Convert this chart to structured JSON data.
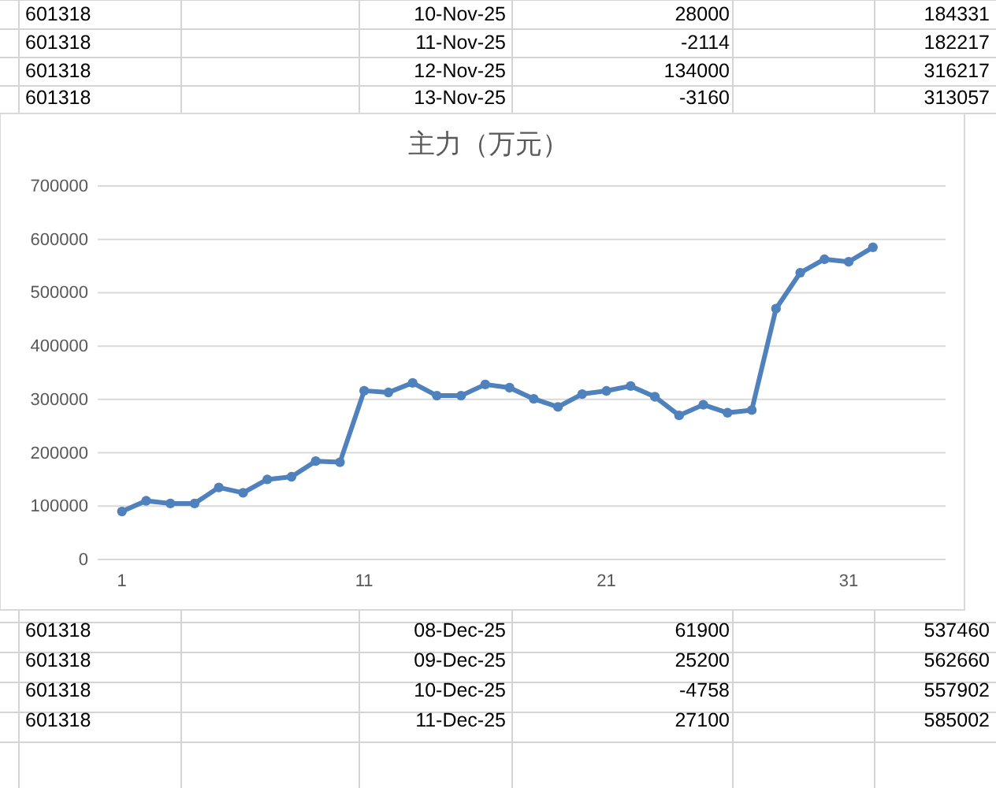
{
  "chart_data": {
    "type": "line",
    "title": "主力（万元）",
    "x": [
      1,
      2,
      3,
      4,
      5,
      6,
      7,
      8,
      9,
      10,
      11,
      12,
      13,
      14,
      15,
      16,
      17,
      18,
      19,
      20,
      21,
      22,
      23,
      24,
      25,
      26,
      27,
      28,
      29,
      30,
      31,
      32
    ],
    "series": [
      {
        "color": "#4f81bd",
        "values": [
          90000,
          110000,
          105000,
          105000,
          135000,
          125000,
          150000,
          155000,
          184331,
          182217,
          316217,
          313057,
          331000,
          307000,
          307000,
          328000,
          322000,
          301000,
          286000,
          310000,
          316000,
          325000,
          305000,
          270000,
          290000,
          275000,
          280000,
          470000,
          537460,
          562660,
          557902,
          585002
        ]
      }
    ],
    "xlim": [
      0,
      35
    ],
    "xticks": [
      1,
      11,
      21,
      31
    ],
    "ylim": [
      0,
      700000
    ],
    "yticks": [
      0,
      100000,
      200000,
      300000,
      400000,
      500000,
      600000,
      700000
    ],
    "grid": "y",
    "marker": "circle",
    "line_style": "solid",
    "annotations": [
      "601318",
      "10-Nov-25",
      "28000",
      "184331",
      "601318",
      "11-Nov-25",
      "-2114",
      "182217",
      "601318",
      "12-Nov-25",
      "134000",
      "316217",
      "601318",
      "13-Nov-25",
      "-3160",
      "313057",
      "601318",
      "08-Dec-25",
      "61900",
      "537460",
      "601318",
      "09-Dec-25",
      "25200",
      "562660",
      "601318",
      "10-Dec-25",
      "-4758",
      "557902",
      "601318",
      "11-Dec-25",
      "27100",
      "585002"
    ]
  }
}
